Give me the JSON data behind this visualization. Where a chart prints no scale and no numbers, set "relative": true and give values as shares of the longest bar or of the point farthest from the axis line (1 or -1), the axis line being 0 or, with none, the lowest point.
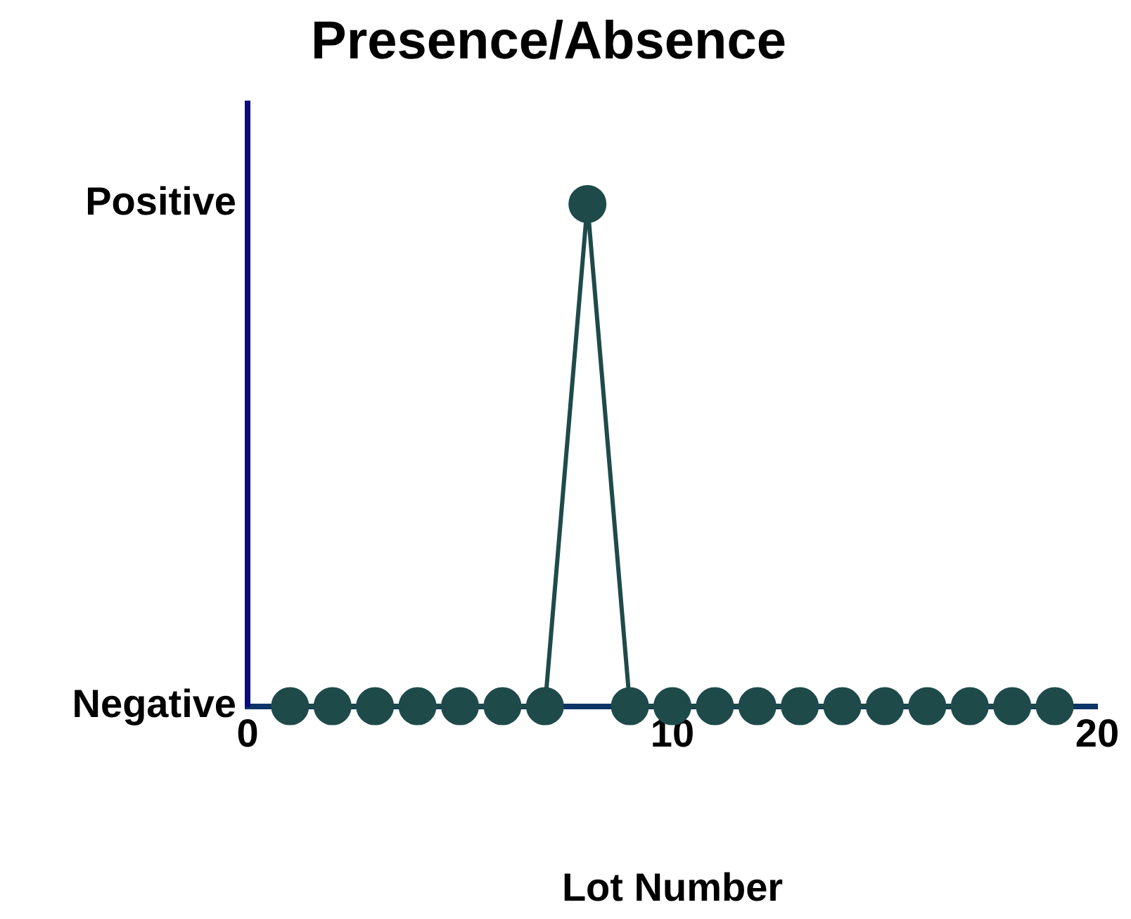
{
  "chart_data": {
    "type": "line",
    "title": "Presence/Absence",
    "xlabel": "Lot Number",
    "x": [
      1,
      2,
      3,
      4,
      5,
      6,
      7,
      8,
      9,
      10,
      11,
      12,
      13,
      14,
      15,
      16,
      17,
      18,
      19
    ],
    "series": [
      {
        "color": "#1f4a4a",
        "values": [
          0,
          0,
          0,
          0,
          0,
          0,
          0,
          1,
          0,
          0,
          0,
          0,
          0,
          0,
          0,
          0,
          0,
          0,
          0
        ]
      }
    ],
    "xlim": [
      0,
      20
    ],
    "xticks": [
      0,
      10,
      20
    ],
    "relative": true,
    "annotations": [
      "Negative",
      "Positive"
    ],
    "grid": false,
    "legend": false,
    "marker": "circle",
    "line_style": "solid"
  }
}
